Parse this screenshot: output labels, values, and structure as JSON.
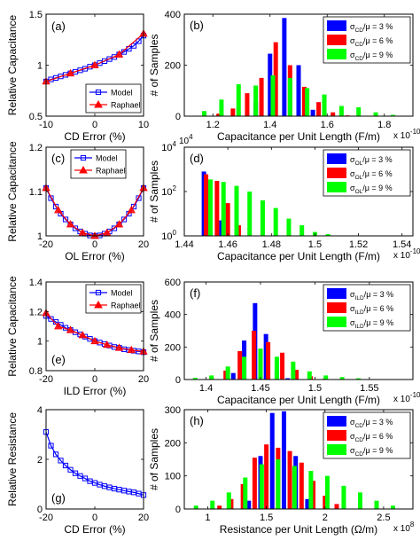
{
  "chart_data": [
    {
      "type": "line",
      "panel_label": "(a)",
      "xlabel": "CD Error (%)",
      "ylabel": "Relative Capacitance",
      "xlim": [
        -10,
        10
      ],
      "ylim": [
        0.5,
        1.5
      ],
      "xticks": [
        -10,
        0,
        10
      ],
      "yticks": [
        0.5,
        1,
        1.5
      ],
      "legend_position": "lower-right",
      "x": [
        -10,
        -9,
        -8,
        -7,
        -6,
        -5,
        -4,
        -3,
        -2,
        -1,
        0,
        1,
        2,
        3,
        4,
        5,
        6,
        7,
        8,
        9,
        10
      ],
      "series": [
        {
          "name": "Model",
          "color": "#0000ff",
          "marker": "square",
          "values": [
            0.84,
            0.86,
            0.875,
            0.89,
            0.905,
            0.92,
            0.935,
            0.95,
            0.965,
            0.985,
            1.0,
            1.02,
            1.04,
            1.06,
            1.08,
            1.105,
            1.13,
            1.16,
            1.19,
            1.235,
            1.29
          ]
        },
        {
          "name": "Raphael",
          "color": "#ff0000",
          "marker": "triangle",
          "x": [
            -10,
            -5,
            0,
            5,
            10
          ],
          "values": [
            0.84,
            0.92,
            1.0,
            1.105,
            1.31
          ]
        }
      ]
    },
    {
      "type": "bar",
      "panel_label": "(b)",
      "xlabel": "Capacitance per Unit Length (F/m)",
      "x_multiplier": "x 10",
      "x_multiplier_exp": "-10",
      "ylabel": "# of Samples",
      "xlim": [
        1.1,
        1.9
      ],
      "ylim": [
        0,
        400
      ],
      "xticks": [
        1.2,
        1.4,
        1.6,
        1.8
      ],
      "yticks": [
        0,
        200,
        400
      ],
      "legend_position": "top-right",
      "series": [
        {
          "name_main": "σ",
          "name_sub": "CD",
          "name_rest": "/μ = 3 %",
          "color": "#0000ff",
          "x": [
            1.35,
            1.4,
            1.45,
            1.5,
            1.55
          ],
          "values": [
            55,
            245,
            385,
            200,
            25
          ]
        },
        {
          "name_main": "σ",
          "name_sub": "CD",
          "name_rest": "/μ = 6 %",
          "color": "#ff0000",
          "x": [
            1.22,
            1.27,
            1.32,
            1.37,
            1.42,
            1.47,
            1.52,
            1.57,
            1.62,
            1.67
          ],
          "values": [
            10,
            30,
            90,
            150,
            290,
            200,
            115,
            55,
            15,
            3
          ]
        },
        {
          "name_main": "σ",
          "name_sub": "CD",
          "name_rest": "/μ = 9 %",
          "color": "#00ff00",
          "x": [
            1.17,
            1.23,
            1.29,
            1.35,
            1.41,
            1.47,
            1.53,
            1.59,
            1.65,
            1.71,
            1.77,
            1.83
          ],
          "values": [
            20,
            65,
            125,
            120,
            160,
            150,
            110,
            85,
            40,
            35,
            15,
            5
          ]
        }
      ]
    },
    {
      "type": "line",
      "panel_label": "(c)",
      "xlabel": "OL Error (%)",
      "ylabel": "Relative Capacitance",
      "xlim": [
        -20,
        20
      ],
      "ylim": [
        1,
        1.2
      ],
      "xticks": [
        -20,
        0,
        20
      ],
      "yticks": [
        1,
        1.1,
        1.2
      ],
      "legend_position": "top-center",
      "x": [
        -20,
        -18,
        -16,
        -14,
        -12,
        -10,
        -8,
        -6,
        -4,
        -2,
        0,
        2,
        4,
        6,
        8,
        10,
        12,
        14,
        16,
        18,
        20
      ],
      "series": [
        {
          "name": "Model",
          "color": "#0000ff",
          "marker": "square",
          "values": [
            1.108,
            1.085,
            1.066,
            1.05,
            1.037,
            1.026,
            1.017,
            1.01,
            1.005,
            1.001,
            1.0,
            1.001,
            1.005,
            1.01,
            1.017,
            1.026,
            1.037,
            1.05,
            1.066,
            1.085,
            1.108
          ]
        },
        {
          "name": "Raphael",
          "color": "#ff0000",
          "marker": "triangle",
          "x": [
            -20,
            -15,
            -10,
            -5,
            0,
            5,
            10,
            15,
            20
          ],
          "values": [
            1.108,
            1.058,
            1.026,
            1.007,
            1.0,
            1.007,
            1.026,
            1.058,
            1.108
          ]
        }
      ]
    },
    {
      "type": "bar",
      "panel_label": "(d)",
      "xlabel": "Capacitance per Unit Length (F/m)",
      "x_multiplier": "x 10",
      "x_multiplier_exp": "-10",
      "ylabel": "# of Samples",
      "yscale": "log",
      "y_log_base": "10",
      "xlim": [
        1.44,
        1.545
      ],
      "ylim_exp": [
        0,
        4
      ],
      "xticks": [
        1.44,
        1.46,
        1.48,
        1.5,
        1.52,
        1.54
      ],
      "ytick_exps": [
        0,
        2,
        4
      ],
      "legend_position": "top-right",
      "series": [
        {
          "name_main": "σ",
          "name_sub": "OL",
          "name_rest": "/μ = 3 %",
          "color": "#0000ff",
          "x": [
            1.449,
            1.457
          ],
          "values": [
            800,
            5
          ]
        },
        {
          "name_main": "σ",
          "name_sub": "OL",
          "name_rest": "/μ = 6 %",
          "color": "#ff0000",
          "x": [
            1.45,
            1.455,
            1.46,
            1.465
          ],
          "values": [
            600,
            300,
            30,
            3
          ]
        },
        {
          "name_main": "σ",
          "name_sub": "OL",
          "name_rest": "/μ = 9 %",
          "color": "#00ff00",
          "x": [
            1.452,
            1.458,
            1.464,
            1.47,
            1.476,
            1.482,
            1.488,
            1.494,
            1.5,
            1.506
          ],
          "values": [
            350,
            270,
            180,
            100,
            40,
            18,
            6,
            3,
            1.5,
            1.2
          ]
        }
      ]
    },
    {
      "type": "line",
      "panel_label": "(e)",
      "xlabel": "ILD Error (%)",
      "ylabel": "Relative Capacitance",
      "xlim": [
        -20,
        20
      ],
      "ylim": [
        0.8,
        1.4
      ],
      "xticks": [
        -20,
        0,
        20
      ],
      "yticks": [
        0.8,
        1,
        1.2,
        1.4
      ],
      "legend_position": "top-right",
      "x": [
        -20,
        -18,
        -16,
        -14,
        -12,
        -10,
        -8,
        -6,
        -4,
        -2,
        0,
        2,
        4,
        6,
        8,
        10,
        12,
        14,
        16,
        18,
        20
      ],
      "series": [
        {
          "name": "Model",
          "color": "#0000ff",
          "marker": "square",
          "values": [
            1.17,
            1.15,
            1.13,
            1.11,
            1.09,
            1.075,
            1.06,
            1.045,
            1.03,
            1.015,
            1.0,
            0.99,
            0.98,
            0.97,
            0.96,
            0.955,
            0.945,
            0.94,
            0.935,
            0.93,
            0.925
          ]
        },
        {
          "name": "Raphael",
          "color": "#ff0000",
          "marker": "triangle",
          "x": [
            -20,
            -15,
            -10,
            -5,
            0,
            5,
            10,
            15,
            20
          ],
          "values": [
            1.19,
            1.1,
            1.075,
            1.04,
            1.0,
            0.975,
            0.955,
            0.94,
            0.93
          ]
        }
      ]
    },
    {
      "type": "bar",
      "panel_label": "(f)",
      "xlabel": "Capacitance per Unit Length (F/m)",
      "x_multiplier": "x 10",
      "x_multiplier_exp": "-10",
      "ylabel": "# of Samples",
      "xlim": [
        1.38,
        1.59
      ],
      "ylim": [
        0,
        600
      ],
      "xticks": [
        1.4,
        1.45,
        1.5,
        1.55
      ],
      "yticks": [
        0,
        200,
        400,
        600
      ],
      "legend_position": "top-right",
      "series": [
        {
          "name_main": "σ",
          "name_sub": "ILD",
          "name_rest": "/μ = 3 %",
          "color": "#0000ff",
          "x": [
            1.425,
            1.435,
            1.445,
            1.455,
            1.465,
            1.475
          ],
          "values": [
            40,
            240,
            470,
            280,
            60,
            8
          ]
        },
        {
          "name_main": "σ",
          "name_sub": "ILD",
          "name_rest": "/μ = 6 %",
          "color": "#ff0000",
          "x": [
            1.405,
            1.418,
            1.431,
            1.444,
            1.457,
            1.47,
            1.483,
            1.496,
            1.509
          ],
          "values": [
            15,
            55,
            175,
            300,
            230,
            165,
            60,
            20,
            5
          ]
        },
        {
          "name_main": "σ",
          "name_sub": "ILD",
          "name_rest": "/μ = 9 %",
          "color": "#00ff00",
          "x": [
            1.39,
            1.405,
            1.42,
            1.435,
            1.45,
            1.465,
            1.48,
            1.495,
            1.51,
            1.525,
            1.54,
            1.555
          ],
          "values": [
            10,
            25,
            80,
            140,
            190,
            140,
            110,
            50,
            25,
            15,
            8,
            3
          ]
        }
      ]
    },
    {
      "type": "line",
      "panel_label": "(g)",
      "xlabel": "CD Error (%)",
      "ylabel": "Relative Resistance",
      "xlim": [
        -20,
        20
      ],
      "ylim": [
        0,
        4
      ],
      "xticks": [
        -20,
        0,
        20
      ],
      "yticks": [
        0,
        2,
        4
      ],
      "x": [
        -20,
        -18,
        -16,
        -14,
        -12,
        -10,
        -8,
        -6,
        -4,
        -2,
        0,
        2,
        4,
        6,
        8,
        10,
        12,
        14,
        16,
        18,
        20
      ],
      "series": [
        {
          "name": "Model",
          "color": "#0000ff",
          "marker": "square",
          "values": [
            3.1,
            2.55,
            2.2,
            1.95,
            1.75,
            1.58,
            1.44,
            1.33,
            1.23,
            1.12,
            1.05,
            0.98,
            0.92,
            0.87,
            0.82,
            0.78,
            0.74,
            0.7,
            0.67,
            0.62,
            0.56
          ]
        }
      ]
    },
    {
      "type": "bar",
      "panel_label": "(h)",
      "xlabel": "Resistance per Unit Length (Ω/m)",
      "x_multiplier": "x 10",
      "x_multiplier_exp": "8",
      "ylabel": "# of Samples",
      "xlim": [
        0.8,
        2.75
      ],
      "ylim": [
        0,
        300
      ],
      "xticks": [
        1,
        1.5,
        2,
        2.5
      ],
      "yticks": [
        0,
        100,
        200,
        300
      ],
      "legend_position": "top-right",
      "series": [
        {
          "name_main": "σ",
          "name_sub": "CD",
          "name_rest": "/μ = 3 %",
          "color": "#0000ff",
          "x": [
            1.35,
            1.45,
            1.55,
            1.65,
            1.75,
            1.85
          ],
          "values": [
            25,
            160,
            290,
            295,
            160,
            30
          ]
        },
        {
          "name_main": "σ",
          "name_sub": "CD",
          "name_rest": "/μ = 6 %",
          "color": "#ff0000",
          "x": [
            1.1,
            1.2,
            1.3,
            1.4,
            1.5,
            1.6,
            1.7,
            1.8,
            1.9,
            2.0,
            2.1
          ],
          "values": [
            10,
            30,
            75,
            155,
            195,
            185,
            175,
            140,
            85,
            40,
            15
          ]
        },
        {
          "name_main": "σ",
          "name_sub": "CD",
          "name_rest": "/μ = 9 %",
          "color": "#00ff00",
          "x": [
            0.9,
            1.04,
            1.18,
            1.32,
            1.46,
            1.6,
            1.74,
            1.88,
            2.02,
            2.16,
            2.3,
            2.44,
            2.58
          ],
          "values": [
            10,
            25,
            50,
            95,
            135,
            150,
            130,
            115,
            100,
            70,
            50,
            25,
            10
          ]
        }
      ]
    }
  ]
}
